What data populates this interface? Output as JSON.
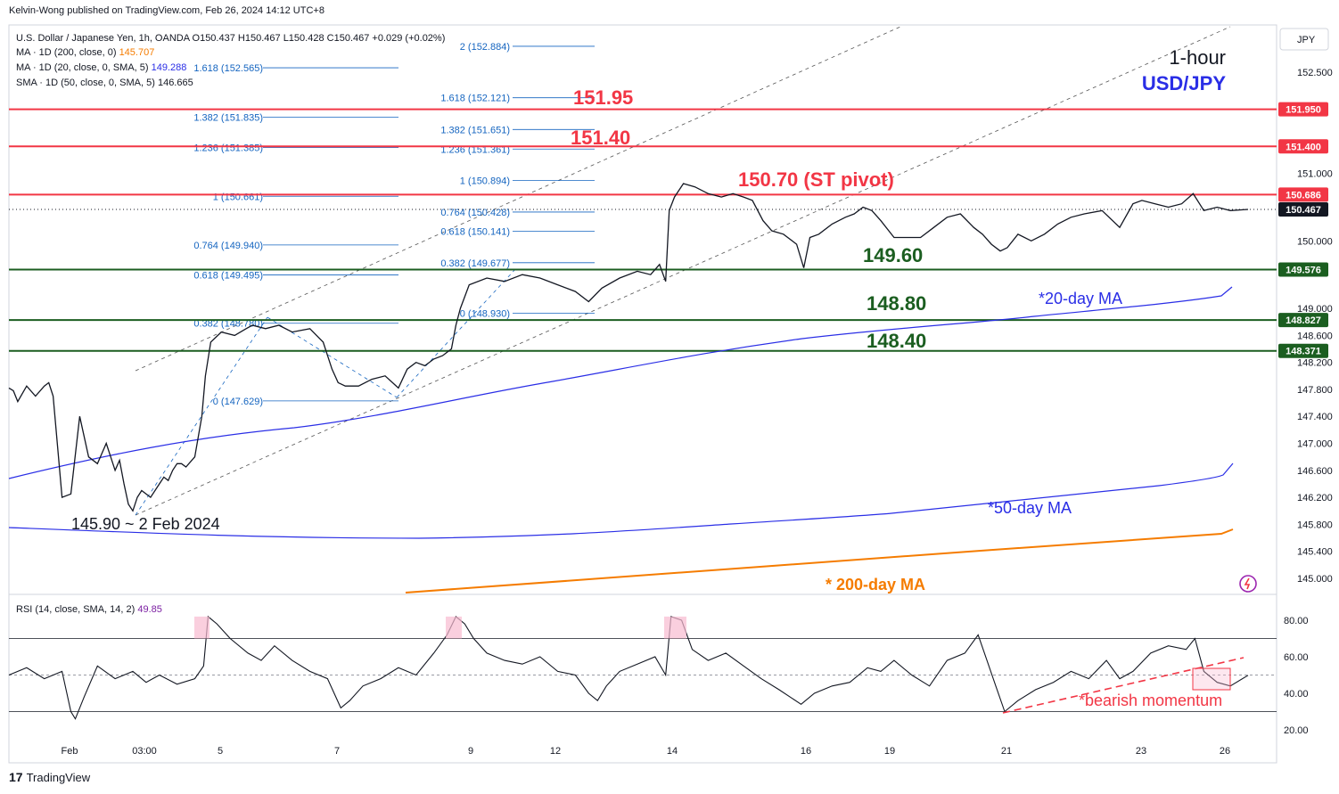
{
  "header": {
    "published": "Kelvin-Wong published on TradingView.com, Feb 26, 2024 14:12 UTC+8"
  },
  "footer": {
    "brand": "TradingView",
    "logo_text": "17"
  },
  "chart_data": [
    {
      "type": "line",
      "instrument": {
        "title": "U.S. Dollar / Japanese Yen, 1h, OANDA",
        "open": "O150.437",
        "high": "H150.467",
        "low": "L150.428",
        "close": "C150.467",
        "change": "+0.029 (+0.02%)"
      },
      "legend": [
        {
          "label": "MA · 1D (200, close, 0)",
          "value": "145.707",
          "color": "#f57c00"
        },
        {
          "label": "MA · 1D (20, close, 0, SMA, 5)",
          "value": "149.288",
          "color": "#2a2ee6"
        },
        {
          "label": "SMA · 1D (50, close, 0, SMA, 5)",
          "value": "146.665",
          "color": "#131722"
        }
      ],
      "corner_labels": {
        "timeframe": "1-hour",
        "pair": "USD/JPY",
        "currency": "JPY"
      },
      "y_axis": {
        "ticks": [
          "152.500",
          "151.950",
          "151.400",
          "151.000",
          "150.686",
          "150.467",
          "150.000",
          "149.576",
          "149.000",
          "148.827",
          "148.600",
          "148.371",
          "148.200",
          "147.800",
          "147.400",
          "147.000",
          "146.600",
          "146.200",
          "145.800",
          "145.400",
          "145.000"
        ],
        "ylim": [
          144.8,
          153.0
        ]
      },
      "x_axis": {
        "ticks": [
          "Feb",
          "03:00",
          "5",
          "7",
          "9",
          "12",
          "14",
          "16",
          "19",
          "21",
          "23",
          "26"
        ]
      },
      "price_labels": [
        {
          "value": "151.950",
          "color": "#f23645"
        },
        {
          "value": "151.400",
          "color": "#f23645"
        },
        {
          "value": "150.686",
          "color": "#f23645"
        },
        {
          "value": "150.467",
          "color": "#131722"
        },
        {
          "value": "149.576",
          "color": "#1b5e20"
        },
        {
          "value": "148.827",
          "color": "#1b5e20"
        },
        {
          "value": "148.371",
          "color": "#1b5e20"
        }
      ],
      "levels": [
        {
          "price": 151.95,
          "label": "151.95",
          "color": "#f23645"
        },
        {
          "price": 151.4,
          "label": "151.40",
          "color": "#f23645"
        },
        {
          "price": 150.686,
          "label": "150.70 (ST pivot)",
          "color": "#f23645"
        },
        {
          "price": 149.576,
          "label": "149.60",
          "color": "#1b5e20"
        },
        {
          "price": 148.827,
          "label": "148.80",
          "color": "#1b5e20"
        },
        {
          "price": 148.371,
          "label": "148.40",
          "color": "#1b5e20"
        }
      ],
      "fib_left": [
        "1.382 (151.835)",
        "1.236 (151.385)",
        "1 (150.661)",
        "0.764 (149.940)",
        "0.618 (149.495)",
        "0.382 (148.780)",
        "0 (147.629)"
      ],
      "fib_right": [
        "2 (152.884)",
        "1.618 (152.121)",
        "1.382 (151.651)",
        "1.236 (151.361)",
        "1 (150.894)",
        "0.764 (150.428)",
        "0.618 (150.141)",
        "0.382 (149.677)",
        "0 (148.930)"
      ],
      "fib_extra": "1.618 (152.565)",
      "annotations": {
        "low": "145.90 ~ 2 Feb 2024",
        "ma20": "*20-day MA",
        "ma50": "*50-day MA",
        "ma200": "* 200-day MA"
      },
      "series": [
        {
          "name": "USD/JPY",
          "x": [
            0,
            5,
            10,
            20,
            30,
            40,
            45,
            50,
            55,
            60,
            70,
            80,
            90,
            100,
            110,
            120,
            125,
            130,
            135,
            140,
            145,
            150,
            160,
            170,
            175,
            180,
            185,
            190,
            195,
            200,
            210,
            218,
            222,
            228,
            240,
            255,
            268,
            275,
            290,
            305,
            320,
            340,
            355,
            365,
            372,
            380,
            395,
            410,
            425,
            440,
            450,
            460,
            470,
            480,
            490,
            500,
            505,
            510,
            520,
            540,
            560,
            580,
            600,
            620,
            640,
            655,
            670,
            690,
            710,
            725,
            735,
            742,
            746,
            752,
            762,
            775,
            790,
            805,
            818,
            830,
            840,
            852,
            862,
            875,
            890,
            898,
            905,
            915,
            930,
            945,
            955,
            965,
            975,
            985,
            1000,
            1015,
            1030,
            1045,
            1060,
            1075,
            1090,
            1100,
            1110,
            1120,
            1128,
            1140,
            1155,
            1170,
            1185,
            1200,
            1215,
            1235,
            1255,
            1270,
            1280,
            1295,
            1310,
            1325,
            1338,
            1350,
            1365,
            1380,
            1400
          ],
          "values": [
            147.82,
            147.78,
            147.62,
            147.85,
            147.7,
            147.85,
            147.9,
            147.7,
            146.95,
            146.2,
            146.25,
            147.4,
            146.8,
            146.7,
            147.0,
            146.6,
            146.75,
            146.4,
            146.1,
            146.0,
            146.2,
            146.3,
            146.2,
            146.4,
            146.5,
            146.45,
            146.6,
            146.7,
            146.7,
            146.65,
            146.8,
            147.4,
            148.0,
            148.5,
            148.65,
            148.6,
            148.7,
            148.75,
            148.7,
            148.75,
            148.65,
            148.7,
            148.5,
            148.1,
            147.9,
            147.85,
            147.85,
            147.95,
            148.0,
            147.82,
            148.1,
            148.2,
            148.15,
            148.25,
            148.3,
            148.4,
            148.75,
            149.0,
            149.35,
            149.45,
            149.4,
            149.5,
            149.45,
            149.35,
            149.25,
            149.1,
            149.3,
            149.45,
            149.55,
            149.5,
            149.65,
            149.4,
            150.45,
            150.65,
            150.85,
            150.8,
            150.7,
            150.65,
            150.7,
            150.65,
            150.6,
            150.3,
            150.15,
            150.1,
            149.95,
            149.6,
            150.05,
            150.1,
            150.25,
            150.35,
            150.4,
            150.5,
            150.45,
            150.3,
            150.05,
            150.05,
            150.05,
            150.2,
            150.35,
            150.4,
            150.2,
            150.1,
            149.95,
            149.85,
            149.9,
            150.1,
            150.0,
            150.1,
            150.25,
            150.35,
            150.4,
            150.45,
            150.2,
            150.55,
            150.6,
            150.55,
            150.5,
            150.55,
            150.7,
            150.45,
            150.5,
            150.45,
            150.467
          ]
        }
      ]
    },
    {
      "type": "line",
      "title": "RSI (14, close, SMA, 14, 2)",
      "value": "49.85",
      "y_axis": {
        "ticks": [
          "80.00",
          "60.00",
          "40.00",
          "20.00"
        ],
        "ylim": [
          12,
          92
        ]
      },
      "annotation": "*bearish momentum",
      "series": [
        {
          "name": "RSI",
          "x": [
            0,
            20,
            40,
            60,
            70,
            75,
            85,
            100,
            120,
            140,
            155,
            170,
            190,
            210,
            220,
            225,
            235,
            250,
            270,
            285,
            300,
            320,
            340,
            360,
            375,
            385,
            400,
            420,
            440,
            460,
            480,
            495,
            505,
            515,
            525,
            540,
            560,
            580,
            600,
            620,
            640,
            655,
            665,
            675,
            690,
            710,
            730,
            742,
            748,
            760,
            772,
            790,
            810,
            830,
            850,
            870,
            895,
            910,
            930,
            950,
            970,
            985,
            1000,
            1020,
            1040,
            1060,
            1080,
            1095,
            1105,
            1115,
            1125,
            1140,
            1160,
            1180,
            1200,
            1220,
            1240,
            1255,
            1270,
            1290,
            1310,
            1330,
            1340,
            1350,
            1365,
            1380,
            1400
          ],
          "values": [
            50,
            54,
            48,
            52,
            30,
            26,
            38,
            55,
            48,
            52,
            46,
            50,
            45,
            48,
            55,
            82,
            78,
            70,
            62,
            58,
            66,
            58,
            52,
            48,
            32,
            36,
            44,
            48,
            54,
            50,
            62,
            72,
            82,
            78,
            70,
            62,
            58,
            56,
            60,
            52,
            50,
            40,
            36,
            44,
            52,
            56,
            60,
            50,
            82,
            80,
            64,
            58,
            62,
            55,
            48,
            42,
            34,
            40,
            44,
            46,
            54,
            52,
            58,
            50,
            44,
            58,
            62,
            72,
            58,
            44,
            30,
            36,
            42,
            46,
            52,
            48,
            58,
            48,
            52,
            62,
            66,
            64,
            70,
            52,
            46,
            44,
            49.85
          ]
        }
      ]
    }
  ]
}
